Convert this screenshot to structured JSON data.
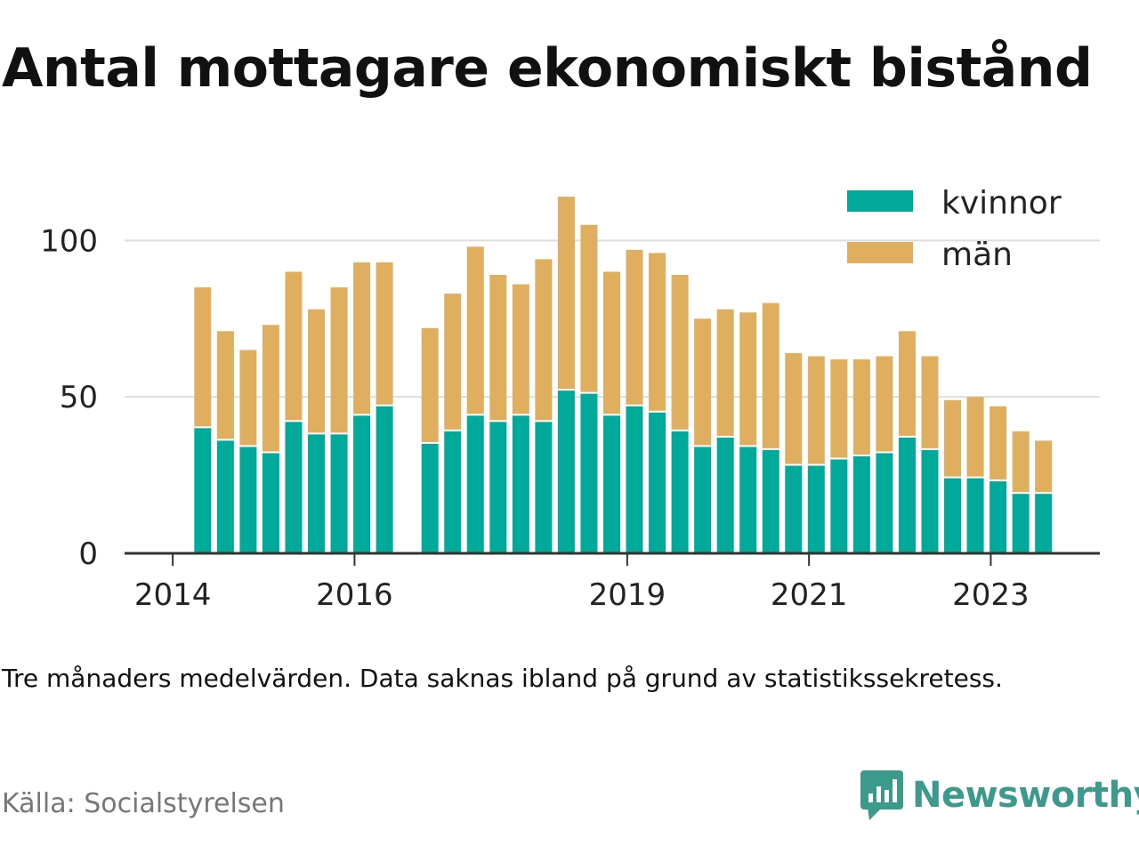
{
  "title": "Antal mottagare ekonomiskt bistånd",
  "note": "Tre månaders medelvärden. Data saknas ibland på grund av statistikssekretess.",
  "source": "Källa: Socialstyrelsen",
  "brand": {
    "name": "Newsworthy",
    "icon": "newsworthy-logo-icon",
    "color": "#3c9a8d"
  },
  "chart_data": {
    "type": "bar",
    "stacked": true,
    "grid": true,
    "legend_position": "top-right",
    "ylim": [
      0,
      120
    ],
    "y_ticks": [
      0,
      50,
      100
    ],
    "x_ticks": [
      "2014",
      "2016",
      "2019",
      "2021",
      "2023"
    ],
    "x_tick_dates": [
      2014.0,
      2016.0,
      2019.0,
      2021.0,
      2023.0
    ],
    "x_range": [
      2013.47,
      2024.2
    ],
    "x": [
      2014.33,
      2014.58,
      2014.83,
      2015.08,
      2015.33,
      2015.58,
      2015.83,
      2016.08,
      2016.33,
      2016.83,
      2017.08,
      2017.33,
      2017.58,
      2017.83,
      2018.08,
      2018.33,
      2018.58,
      2018.83,
      2019.08,
      2019.33,
      2019.58,
      2019.83,
      2020.08,
      2020.33,
      2020.58,
      2020.83,
      2021.08,
      2021.33,
      2021.58,
      2021.83,
      2022.08,
      2022.33,
      2022.58,
      2022.83,
      2023.08,
      2023.33,
      2023.58
    ],
    "series": [
      {
        "name": "kvinnor",
        "color": "#00a99a",
        "values": [
          40,
          36,
          34,
          32,
          42,
          38,
          38,
          44,
          47,
          35,
          39,
          44,
          42,
          44,
          42,
          52,
          51,
          44,
          47,
          45,
          39,
          34,
          37,
          34,
          33,
          28,
          28,
          30,
          31,
          32,
          37,
          33,
          24,
          24,
          23,
          19,
          19
        ]
      },
      {
        "name": "män",
        "color": "#dfae5e",
        "values": [
          45,
          35,
          31,
          41,
          48,
          40,
          47,
          49,
          46,
          37,
          44,
          54,
          47,
          42,
          52,
          62,
          54,
          46,
          50,
          51,
          50,
          41,
          41,
          43,
          47,
          36,
          35,
          32,
          31,
          31,
          34,
          30,
          25,
          26,
          24,
          20,
          17
        ]
      }
    ]
  }
}
